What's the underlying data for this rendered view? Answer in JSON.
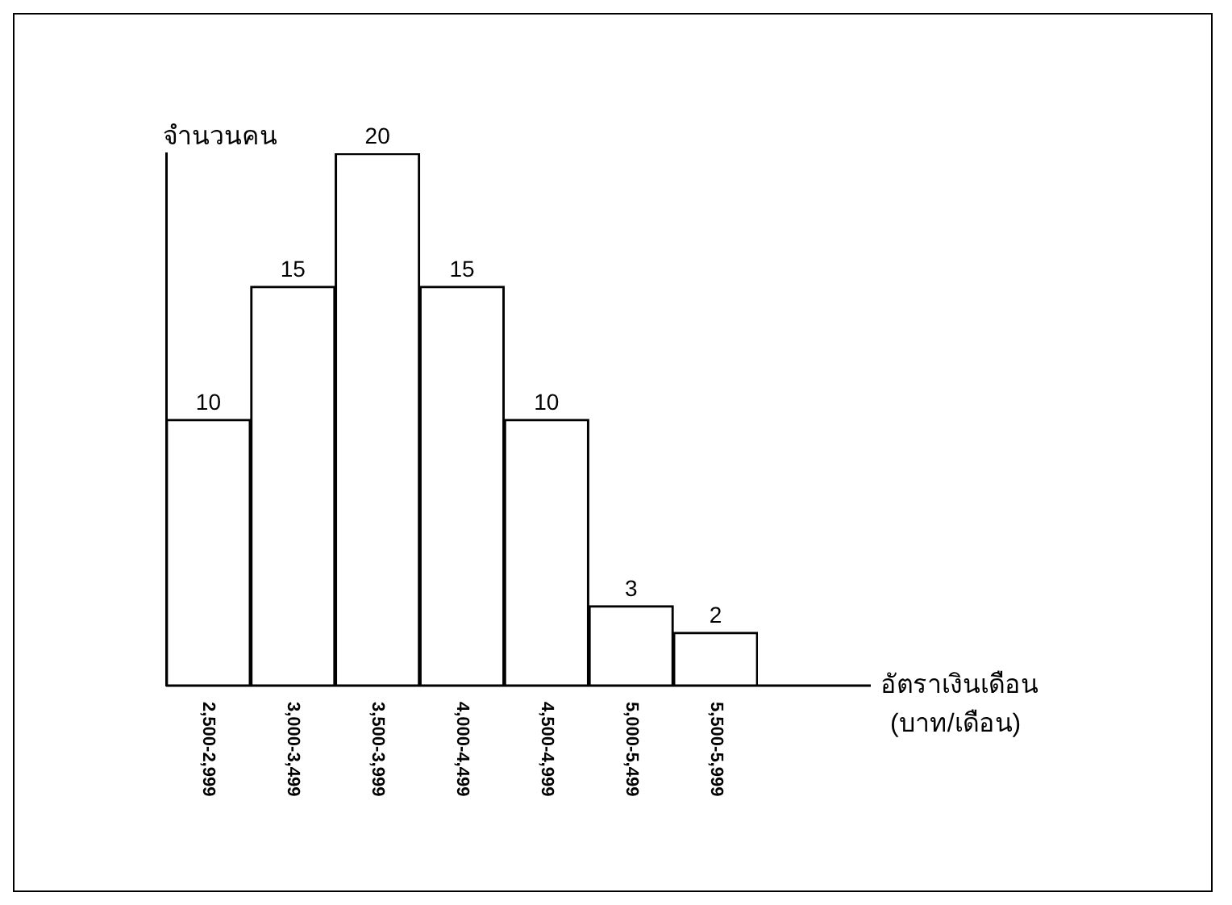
{
  "chart_data": {
    "type": "bar",
    "ylabel": "จำนวนคน",
    "xlabel": "อัตราเงินเดือน\n(บาท/เดือน)",
    "categories": [
      "2,500-2,999",
      "3,000-3,499",
      "3,500-3,999",
      "4,000-4,499",
      "4,500-4,999",
      "5,000-5,499",
      "5,500-5,999"
    ],
    "values": [
      10,
      15,
      20,
      15,
      10,
      3,
      2
    ],
    "color": "#ffffff",
    "data_labels": true,
    "grid": false,
    "legend": false
  }
}
